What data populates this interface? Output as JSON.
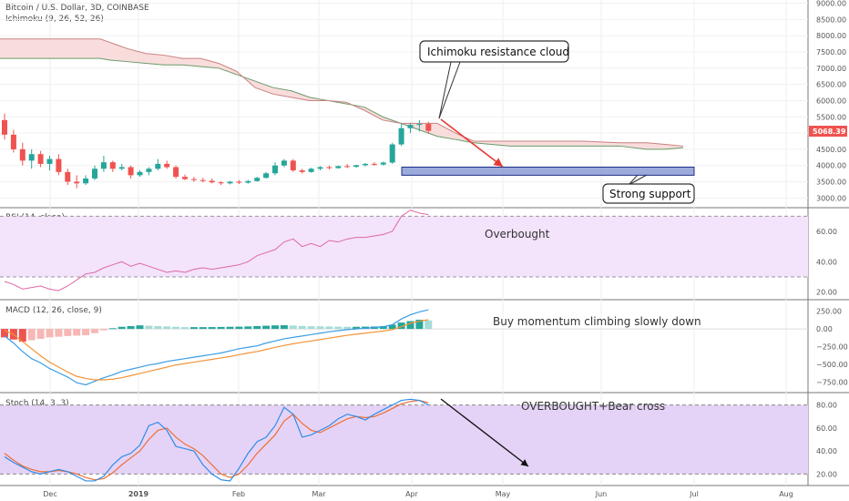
{
  "header": {
    "symbol_line": "Bitcoin / U.S. Dollar, 3D, COINBASE",
    "ichimoku_label": "Ichimoku (9, 26, 52, 26)",
    "rsi_label": "RSI (14, close)",
    "macd_label": "MACD (12, 26, close, 9)",
    "stoch_label": "Stoch (14, 3, 3)"
  },
  "annotations": {
    "cloud_callout": "Ichimoku resistance cloud",
    "support_callout": "Strong support",
    "rsi_note": "Overbought",
    "macd_note": "Buy momentum climbing slowly down",
    "stoch_note": "OVERBOUGHT+Bear cross"
  },
  "price_tag": "5068.39",
  "colors": {
    "bull": "#26a69a",
    "bear": "#ef5350",
    "cloud_fill": "#f8d4d4",
    "rsi_band": "#f3e3fb",
    "stoch_band": "#e5d3f7",
    "support_box": "#7b8fd0",
    "k_line": "#2e8de6",
    "d_line": "#ee6e33",
    "macd_line": "#3a9ee6",
    "signal_line": "#f29437"
  },
  "chart_data": [
    {
      "type": "candlestick",
      "title": "Bitcoin / U.S. Dollar, 3D, COINBASE",
      "ylim": [
        2700,
        9100
      ],
      "price_ticks": [
        "9000.00",
        "8500.00",
        "8000.00",
        "7500.00",
        "7000.00",
        "6500.00",
        "6000.00",
        "5500.00",
        "5000.00",
        "4500.00",
        "4000.00",
        "3500.00",
        "3000.00"
      ],
      "x_labels": [
        "Dec",
        "2019",
        "Feb",
        "Mar",
        "Apr",
        "May",
        "Jun",
        "Jul",
        "Aug"
      ],
      "candles": [
        [
          5400,
          5600,
          4800,
          4950
        ],
        [
          4950,
          5100,
          4400,
          4500
        ],
        [
          4500,
          4700,
          4000,
          4150
        ],
        [
          4150,
          4500,
          3900,
          4350
        ],
        [
          4350,
          4450,
          3950,
          4050
        ],
        [
          4050,
          4300,
          3850,
          4200
        ],
        [
          4200,
          4350,
          3700,
          3800
        ],
        [
          3800,
          3900,
          3400,
          3500
        ],
        [
          3500,
          3700,
          3300,
          3450
        ],
        [
          3450,
          3700,
          3400,
          3600
        ],
        [
          3600,
          4000,
          3550,
          3900
        ],
        [
          3900,
          4300,
          3800,
          4100
        ],
        [
          4100,
          4150,
          3800,
          3900
        ],
        [
          3900,
          4050,
          3850,
          3950
        ],
        [
          3950,
          4000,
          3600,
          3700
        ],
        [
          3700,
          3850,
          3650,
          3800
        ],
        [
          3800,
          3950,
          3700,
          3900
        ],
        [
          3900,
          4200,
          3850,
          4050
        ],
        [
          4050,
          4150,
          3900,
          3950
        ],
        [
          3950,
          4000,
          3600,
          3650
        ],
        [
          3650,
          3720,
          3550,
          3580
        ],
        [
          3580,
          3650,
          3500,
          3550
        ],
        [
          3550,
          3620,
          3480,
          3530
        ],
        [
          3530,
          3600,
          3450,
          3480
        ],
        [
          3480,
          3520,
          3400,
          3450
        ],
        [
          3450,
          3520,
          3420,
          3500
        ],
        [
          3500,
          3550,
          3430,
          3470
        ],
        [
          3470,
          3560,
          3440,
          3520
        ],
        [
          3520,
          3650,
          3500,
          3620
        ],
        [
          3620,
          3800,
          3600,
          3760
        ],
        [
          3760,
          4100,
          3700,
          4000
        ],
        [
          4000,
          4200,
          3950,
          4150
        ],
        [
          4150,
          4200,
          3800,
          3850
        ],
        [
          3850,
          3900,
          3750,
          3800
        ],
        [
          3800,
          3930,
          3780,
          3900
        ],
        [
          3900,
          3980,
          3850,
          3950
        ],
        [
          3950,
          4000,
          3880,
          3920
        ],
        [
          3920,
          4000,
          3900,
          3980
        ],
        [
          3980,
          4050,
          3920,
          3960
        ],
        [
          3960,
          4020,
          3930,
          4010
        ],
        [
          4010,
          4080,
          3970,
          4050
        ],
        [
          4050,
          4100,
          3990,
          4030
        ],
        [
          4030,
          4120,
          4000,
          4090
        ],
        [
          4090,
          4700,
          4050,
          4650
        ],
        [
          4650,
          5300,
          4600,
          5150
        ],
        [
          5150,
          5300,
          5000,
          5250
        ],
        [
          5250,
          5400,
          5050,
          5280
        ],
        [
          5280,
          5350,
          4980,
          5068
        ]
      ],
      "cloud": {
        "x": [
          0,
          20,
          40,
          60,
          80,
          100,
          110,
          120,
          140,
          160,
          180,
          200,
          220,
          240,
          260,
          280,
          300,
          320,
          340,
          360,
          380,
          400,
          420,
          440,
          460,
          480,
          500,
          520,
          560,
          600,
          640,
          680,
          710,
          730,
          750
        ],
        "span_a": [
          7300,
          7300,
          7300,
          7300,
          7300,
          7300,
          7300,
          7250,
          7200,
          7150,
          7100,
          7100,
          7050,
          7000,
          6800,
          6600,
          6400,
          6300,
          6100,
          6000,
          5900,
          5800,
          5500,
          5300,
          5100,
          4900,
          4800,
          4700,
          4600,
          4600,
          4600,
          4600,
          4500,
          4500,
          4550
        ],
        "span_b": [
          7900,
          7900,
          7900,
          7900,
          7900,
          7900,
          7900,
          7800,
          7600,
          7450,
          7400,
          7300,
          7300,
          7150,
          6900,
          6400,
          6200,
          6100,
          6000,
          6000,
          5950,
          5700,
          5400,
          5300,
          5300,
          5300,
          5000,
          4750,
          4750,
          4750,
          4750,
          4700,
          4700,
          4650,
          4600
        ]
      },
      "support_zone": [
        3700,
        3950
      ]
    },
    {
      "type": "line",
      "title": "RSI (14, close)",
      "ylim": [
        15,
        75
      ],
      "y_ticks": [
        20,
        40,
        60
      ],
      "bands": [
        30,
        70
      ],
      "values": [
        27,
        25,
        22,
        23,
        24,
        22,
        21,
        24,
        28,
        32,
        33,
        36,
        38,
        40,
        37,
        39,
        37,
        35,
        33,
        34,
        33,
        35,
        36,
        35,
        36,
        37,
        38,
        40,
        44,
        46,
        48,
        53,
        55,
        50,
        52,
        50,
        54,
        53,
        55,
        56,
        56,
        57,
        58,
        60,
        70,
        74,
        72,
        71
      ]
    },
    {
      "type": "bar+line",
      "title": "MACD (12, 26, close, 9)",
      "ylim": [
        -900,
        400
      ],
      "y_ticks": [
        "250.00",
        "0.00",
        "−250.00",
        "−500.00",
        "−750.00"
      ],
      "histogram": [
        -120,
        -150,
        -180,
        -160,
        -140,
        -120,
        -110,
        -100,
        -95,
        -90,
        -60,
        -20,
        10,
        30,
        40,
        50,
        45,
        40,
        35,
        30,
        25,
        25,
        25,
        26,
        28,
        30,
        32,
        35,
        40,
        45,
        50,
        52,
        48,
        42,
        38,
        36,
        34,
        32,
        30,
        30,
        32,
        34,
        40,
        60,
        90,
        110,
        130,
        120
      ],
      "macd": [
        -100,
        -200,
        -320,
        -420,
        -480,
        -560,
        -620,
        -680,
        -760,
        -790,
        -740,
        -690,
        -650,
        -600,
        -570,
        -540,
        -510,
        -490,
        -460,
        -440,
        -420,
        -400,
        -380,
        -360,
        -340,
        -310,
        -280,
        -260,
        -240,
        -200,
        -170,
        -140,
        -120,
        -100,
        -80,
        -60,
        -40,
        -25,
        -10,
        0,
        10,
        20,
        30,
        60,
        140,
        200,
        240,
        270
      ],
      "signal": [
        -20,
        -80,
        -180,
        -280,
        -380,
        -470,
        -540,
        -610,
        -670,
        -700,
        -720,
        -720,
        -710,
        -690,
        -660,
        -630,
        -600,
        -570,
        -540,
        -510,
        -490,
        -470,
        -450,
        -430,
        -410,
        -390,
        -365,
        -340,
        -320,
        -290,
        -260,
        -235,
        -210,
        -190,
        -170,
        -150,
        -130,
        -110,
        -90,
        -75,
        -60,
        -45,
        -30,
        -10,
        30,
        80,
        110,
        130
      ]
    },
    {
      "type": "line",
      "title": "Stoch (14, 3, 3)",
      "ylim": [
        10,
        90
      ],
      "y_ticks": [
        20,
        40,
        60,
        80
      ],
      "bands": [
        20,
        80
      ],
      "k": [
        35,
        30,
        26,
        22,
        20,
        22,
        24,
        22,
        18,
        14,
        14,
        18,
        28,
        35,
        38,
        45,
        62,
        65,
        58,
        44,
        42,
        40,
        28,
        20,
        15,
        14,
        25,
        38,
        48,
        52,
        62,
        78,
        72,
        52,
        54,
        58,
        62,
        68,
        72,
        70,
        67,
        72,
        76,
        80,
        84,
        85,
        84,
        80
      ],
      "d": [
        38,
        32,
        27,
        24,
        22,
        22,
        23,
        22,
        20,
        17,
        15,
        16,
        21,
        28,
        34,
        40,
        50,
        58,
        60,
        52,
        46,
        42,
        36,
        28,
        20,
        17,
        20,
        28,
        38,
        46,
        54,
        66,
        72,
        64,
        58,
        56,
        60,
        64,
        68,
        70,
        69,
        70,
        73,
        77,
        81,
        83,
        84,
        82
      ]
    }
  ]
}
